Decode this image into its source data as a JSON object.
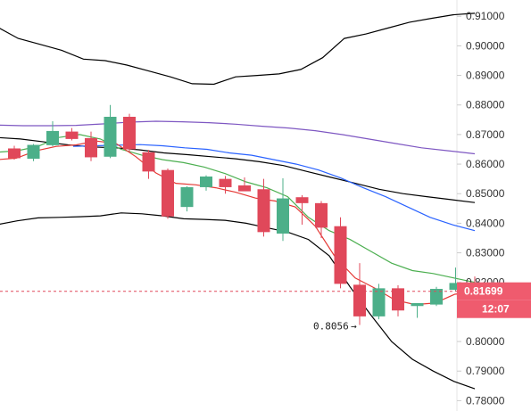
{
  "chart_data": {
    "type": "candlestick",
    "ylim": [
      0.7765,
      0.9155
    ],
    "grid": false,
    "y_ticks": [
      "0.91000",
      "0.90000",
      "0.89000",
      "0.88000",
      "0.87000",
      "0.86000",
      "0.85000",
      "0.84000",
      "0.83000",
      "0.82000",
      "0.81000",
      "0.80000",
      "0.79000",
      "0.78000"
    ],
    "y_tick_values": [
      0.91,
      0.9,
      0.89,
      0.88,
      0.87,
      0.86,
      0.85,
      0.84,
      0.83,
      0.82,
      0.81,
      0.8,
      0.79,
      0.78
    ],
    "candles": [
      {
        "o": 0.8653,
        "h": 0.8662,
        "l": 0.8615,
        "c": 0.862
      },
      {
        "o": 0.8618,
        "h": 0.8668,
        "l": 0.861,
        "c": 0.8665
      },
      {
        "o": 0.8664,
        "h": 0.8745,
        "l": 0.866,
        "c": 0.8712
      },
      {
        "o": 0.871,
        "h": 0.8722,
        "l": 0.868,
        "c": 0.8685
      },
      {
        "o": 0.8688,
        "h": 0.871,
        "l": 0.861,
        "c": 0.8623
      },
      {
        "o": 0.8625,
        "h": 0.88,
        "l": 0.862,
        "c": 0.876
      },
      {
        "o": 0.876,
        "h": 0.877,
        "l": 0.864,
        "c": 0.865
      },
      {
        "o": 0.864,
        "h": 0.8648,
        "l": 0.855,
        "c": 0.8575
      },
      {
        "o": 0.858,
        "h": 0.8585,
        "l": 0.8415,
        "c": 0.8423
      },
      {
        "o": 0.8455,
        "h": 0.8525,
        "l": 0.844,
        "c": 0.8522
      },
      {
        "o": 0.8522,
        "h": 0.8562,
        "l": 0.851,
        "c": 0.8558
      },
      {
        "o": 0.855,
        "h": 0.856,
        "l": 0.85,
        "c": 0.8522
      },
      {
        "o": 0.8528,
        "h": 0.8555,
        "l": 0.851,
        "c": 0.8508
      },
      {
        "o": 0.8515,
        "h": 0.855,
        "l": 0.8355,
        "c": 0.837
      },
      {
        "o": 0.8365,
        "h": 0.8552,
        "l": 0.834,
        "c": 0.8484
      },
      {
        "o": 0.8488,
        "h": 0.8495,
        "l": 0.8395,
        "c": 0.8468
      },
      {
        "o": 0.8468,
        "h": 0.8475,
        "l": 0.835,
        "c": 0.8385
      },
      {
        "o": 0.839,
        "h": 0.842,
        "l": 0.818,
        "c": 0.8195
      },
      {
        "o": 0.8192,
        "h": 0.8265,
        "l": 0.8056,
        "c": 0.8085
      },
      {
        "o": 0.8085,
        "h": 0.8195,
        "l": 0.8075,
        "c": 0.818
      },
      {
        "o": 0.818,
        "h": 0.819,
        "l": 0.8085,
        "c": 0.8105
      },
      {
        "o": 0.812,
        "h": 0.813,
        "l": 0.808,
        "c": 0.813
      },
      {
        "o": 0.8125,
        "h": 0.8185,
        "l": 0.812,
        "c": 0.8178
      },
      {
        "o": 0.8175,
        "h": 0.825,
        "l": 0.817,
        "c": 0.8198
      },
      {
        "o": 0.8198,
        "h": 0.822,
        "l": 0.816,
        "c": 0.8169
      }
    ],
    "lines": [
      {
        "color": "#000000",
        "values": [
          0.9065,
          0.9025,
          0.9005,
          0.8985,
          0.8955,
          0.895,
          0.8935,
          0.8915,
          0.8895,
          0.8872,
          0.887,
          0.8895,
          0.89,
          0.8905,
          0.892,
          0.896,
          0.9025,
          0.904,
          0.906,
          0.908,
          0.9093,
          0.9105,
          0.911
        ],
        "x_start": 0
      },
      {
        "color": "#000000",
        "values": [
          0.8395,
          0.8408,
          0.8418,
          0.842,
          0.8422,
          0.8425,
          0.8435,
          0.8432,
          0.8425,
          0.8415,
          0.8413,
          0.841,
          0.84,
          0.8385,
          0.837,
          0.8345,
          0.829,
          0.8185,
          0.809,
          0.8,
          0.794,
          0.79,
          0.7865,
          0.784
        ],
        "x_start": 0
      },
      {
        "color": "#000000",
        "values": [
          0.869,
          0.8685,
          0.8675,
          0.8665,
          0.8658,
          0.8655,
          0.8648,
          0.8638,
          0.8632,
          0.8625,
          0.8618,
          0.8608,
          0.8595,
          0.8575,
          0.8555,
          0.8535,
          0.8515,
          0.85,
          0.849,
          0.848,
          0.847
        ],
        "x_start": 0
      },
      {
        "color": "#7e57c2",
        "values": [
          0.8732,
          0.873,
          0.873,
          0.8731,
          0.8736,
          0.8742,
          0.8745,
          0.8743,
          0.874,
          0.8735,
          0.8728,
          0.8722,
          0.8713,
          0.87,
          0.8685,
          0.867,
          0.8655,
          0.8645,
          0.8635
        ],
        "x_start": 0
      },
      {
        "color": "#2962ff",
        "values": [
          0.866,
          0.8662,
          0.8664,
          0.8666,
          0.8662,
          0.8655,
          0.865,
          0.8638,
          0.863,
          0.8615,
          0.86,
          0.858,
          0.8553,
          0.852,
          0.849,
          0.8455,
          0.842,
          0.8395,
          0.8375
        ],
        "x_start": 4
      },
      {
        "color": "#4caf50",
        "values": [
          0.864,
          0.8645,
          0.866,
          0.869,
          0.87,
          0.8685,
          0.865,
          0.863,
          0.8615,
          0.8605,
          0.859,
          0.8568,
          0.854,
          0.852,
          0.849,
          0.842,
          0.8375,
          0.8345,
          0.8305,
          0.8265,
          0.824,
          0.823,
          0.8215,
          0.82
        ],
        "x_start": 0
      },
      {
        "color": "#e53935",
        "values": [
          0.8615,
          0.862,
          0.8645,
          0.866,
          0.8665,
          0.8678,
          0.867,
          0.8625,
          0.857,
          0.8535,
          0.853,
          0.852,
          0.8505,
          0.8485,
          0.8475,
          0.8455,
          0.839,
          0.8285,
          0.8215,
          0.818,
          0.814,
          0.8125,
          0.813,
          0.816,
          0.8166
        ],
        "x_start": 0
      }
    ],
    "current_price": 0.81699,
    "current_price_label": "0.81699",
    "countdown_label": "12:07",
    "low_label": "0.8056",
    "low_value": 0.8056,
    "low_index": 18,
    "colors": {
      "up": "#4caf89",
      "down": "#e0485a",
      "price_tag": "#ef5b6e",
      "price_line": "#e0485a"
    }
  }
}
